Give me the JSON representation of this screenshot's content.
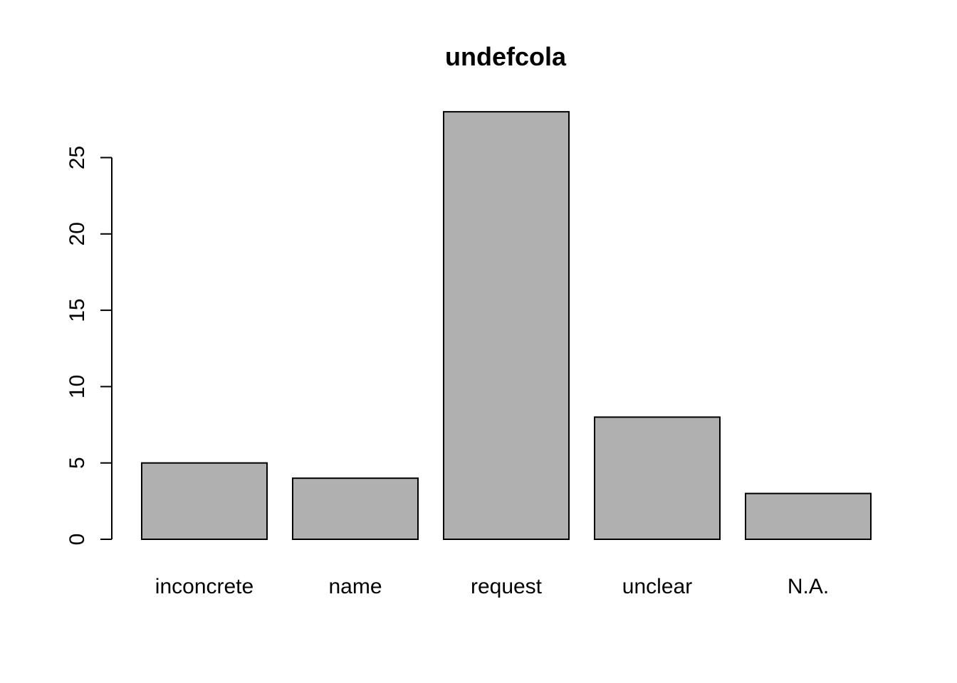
{
  "chart_data": {
    "type": "bar",
    "title": "undefcola",
    "xlabel": "",
    "ylabel": "",
    "categories": [
      "inconcrete",
      "name",
      "request",
      "unclear",
      "N.A."
    ],
    "values": [
      5,
      4,
      28,
      8,
      3
    ],
    "y_ticks": [
      "0",
      "5",
      "10",
      "15",
      "20",
      "25"
    ],
    "ylim": [
      0,
      28
    ],
    "grid": false,
    "legend": "none",
    "colors": {
      "bar_fill": "#b0b0b0",
      "bar_stroke": "#000000",
      "axis": "#000000",
      "background": "#ffffff"
    }
  }
}
